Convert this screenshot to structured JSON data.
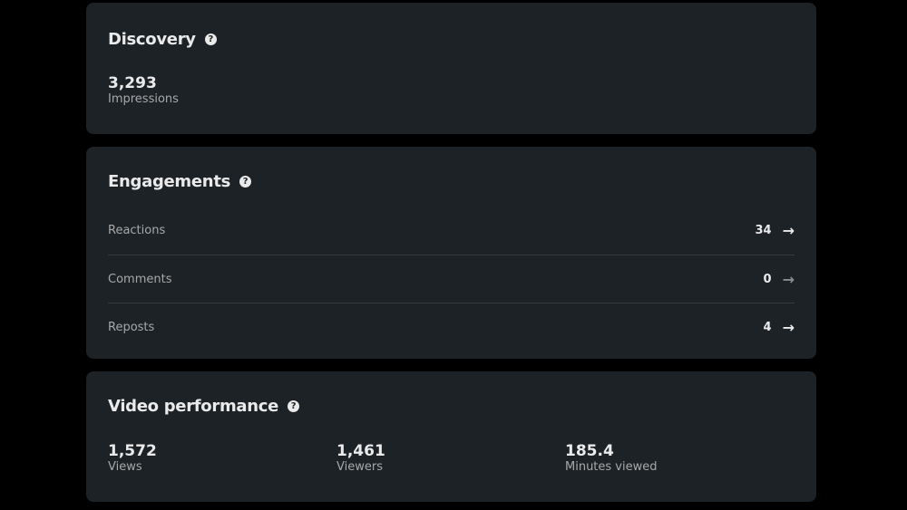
{
  "discovery": {
    "title": "Discovery",
    "value": "3,293",
    "label": "Impressions"
  },
  "engagements": {
    "title": "Engagements",
    "rows": [
      {
        "label": "Reactions",
        "value": "34"
      },
      {
        "label": "Comments",
        "value": "0"
      },
      {
        "label": "Reposts",
        "value": "4"
      }
    ]
  },
  "video": {
    "title": "Video performance",
    "stats": [
      {
        "value": "1,572",
        "label": "Views"
      },
      {
        "value": "1,461",
        "label": "Viewers"
      },
      {
        "value": "185.4",
        "label": "Minutes viewed"
      }
    ]
  },
  "icons": {
    "help": "?",
    "arrow": "→"
  }
}
